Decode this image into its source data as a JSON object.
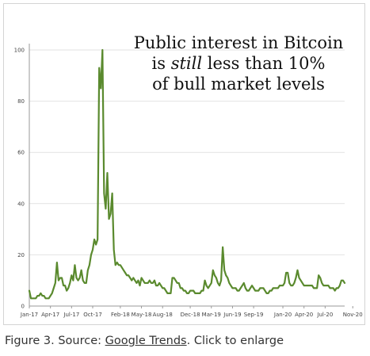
{
  "headline": {
    "line1": "Public interest in Bitcoin",
    "line2_pre": "is ",
    "line2_em": "still",
    "line2_post": " less than 10%",
    "line3": "of  bull market levels"
  },
  "caption": {
    "prefix": "Figure 3. Source: ",
    "link": "Google Trends",
    "suffix": ". Click to enlarge"
  },
  "colors": {
    "line": "#5a8a2e",
    "grid": "#e2e2e2",
    "axis": "#9a9a9a"
  },
  "chart_data": {
    "type": "line",
    "title": "",
    "xlabel": "",
    "ylabel": "",
    "ylim": [
      0,
      100
    ],
    "yticks": [
      0,
      20,
      40,
      60,
      80,
      100
    ],
    "grid": "horizontal",
    "legend": "none",
    "xtick_labels": [
      "Jan-17",
      "Apr-17",
      "Jul-17",
      "Oct-17",
      "Feb-18",
      "May-18",
      "Aug-18",
      "Dec-18",
      "Mar-19",
      "Jun-19",
      "Sep-19",
      "Jan-20",
      "Apr-20",
      "Jul-20",
      "Nov-20"
    ],
    "xtick_weeks": [
      0,
      13,
      26,
      39,
      56,
      69,
      82,
      99,
      112,
      125,
      138,
      156,
      169,
      182,
      199
    ],
    "series": [
      {
        "name": "",
        "color": "#5a8a2e",
        "x_start": "Jan-17",
        "step": "week",
        "values": [
          6,
          3,
          3,
          3,
          3,
          4,
          4,
          5,
          4,
          4,
          3,
          3,
          3,
          4,
          5,
          7,
          9,
          17,
          10,
          11,
          11,
          8,
          8,
          6,
          7,
          9,
          12,
          10,
          16,
          11,
          10,
          11,
          14,
          10,
          9,
          9,
          14,
          16,
          20,
          22,
          26,
          24,
          26,
          93,
          85,
          100,
          44,
          38,
          52,
          34,
          36,
          44,
          22,
          16,
          17,
          16,
          16,
          15,
          14,
          13,
          12,
          12,
          11,
          10,
          11,
          10,
          9,
          10,
          8,
          11,
          10,
          9,
          9,
          9,
          10,
          9,
          9,
          10,
          8,
          8,
          9,
          8,
          7,
          7,
          6,
          5,
          5,
          5,
          11,
          11,
          10,
          9,
          9,
          7,
          7,
          6,
          6,
          5,
          5,
          6,
          6,
          6,
          5,
          5,
          5,
          5,
          6,
          6,
          10,
          8,
          7,
          8,
          9,
          14,
          12,
          11,
          9,
          8,
          10,
          23,
          14,
          12,
          11,
          9,
          8,
          7,
          7,
          7,
          6,
          6,
          7,
          8,
          9,
          7,
          6,
          6,
          7,
          8,
          7,
          6,
          6,
          6,
          7,
          7,
          7,
          6,
          5,
          5,
          6,
          6,
          7,
          7,
          7,
          7,
          8,
          8,
          8,
          9,
          13,
          13,
          9,
          8,
          8,
          9,
          11,
          14,
          11,
          10,
          9,
          8,
          8,
          8,
          8,
          8,
          8,
          7,
          7,
          7,
          12,
          11,
          9,
          8,
          8,
          8,
          8,
          7,
          7,
          7,
          6,
          7,
          7,
          8,
          10,
          10,
          9
        ]
      }
    ]
  }
}
